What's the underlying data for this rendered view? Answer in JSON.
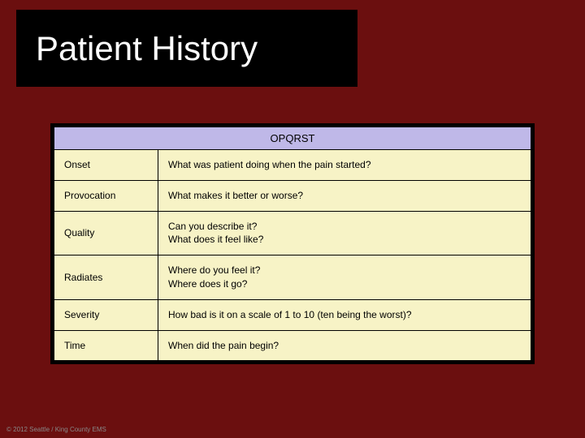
{
  "title": "Patient History",
  "table": {
    "header": "OPQRST",
    "header_bg": "#bfb8e8",
    "row_bg": "#f7f3c6",
    "border_color": "#000000",
    "rows": [
      {
        "label": "Onset",
        "question": "What was patient doing when the pain started?"
      },
      {
        "label": "Provocation",
        "question": "What makes it better or worse?"
      },
      {
        "label": "Quality",
        "question": "Can you describe it?\nWhat does it feel like?"
      },
      {
        "label": "Radiates",
        "question": "Where do you feel it?\nWhere does it go?"
      },
      {
        "label": "Severity",
        "question": "How bad is it on a scale of 1 to 10 (ten being the worst)?"
      },
      {
        "label": "Time",
        "question": "When did the pain begin?"
      }
    ]
  },
  "footer": "© 2012 Seattle / King County EMS",
  "background_color": "#6b0f0f",
  "title_box_bg": "#000000",
  "title_color": "#ffffff",
  "title_fontsize": 42,
  "body_fontsize": 12
}
